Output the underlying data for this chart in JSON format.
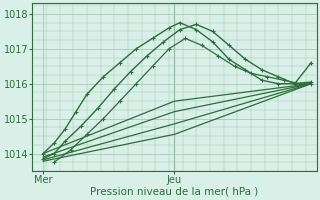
{
  "title": "",
  "xlabel": "Pression niveau de la mer( hPa )",
  "ylabel": "",
  "bg_color": "#d8f0e8",
  "grid_color": "#a8c8b8",
  "line_color": "#2d6e3a",
  "ylim": [
    1013.5,
    1018.3
  ],
  "xlim": [
    0,
    52
  ],
  "yticks": [
    1014,
    1015,
    1016,
    1017,
    1018
  ],
  "xtick_positions": [
    2,
    26
  ],
  "xtick_labels": [
    "Mer",
    "Jeu"
  ],
  "vline_x": 26,
  "series": [
    {
      "x": [
        2,
        4,
        6,
        8,
        10,
        13,
        16,
        19,
        22,
        25,
        27,
        30,
        33,
        36,
        39,
        42,
        45,
        48,
        51
      ],
      "y": [
        1014.0,
        1014.3,
        1014.7,
        1015.2,
        1015.7,
        1016.2,
        1016.6,
        1017.0,
        1017.3,
        1017.6,
        1017.75,
        1017.55,
        1017.2,
        1016.7,
        1016.4,
        1016.1,
        1016.0,
        1016.0,
        1016.05
      ],
      "marker": "+",
      "ms": 3.5,
      "lw": 1.0
    },
    {
      "x": [
        2,
        4,
        6,
        9,
        12,
        15,
        18,
        21,
        24,
        27,
        30,
        33,
        36,
        39,
        42,
        45,
        48,
        51
      ],
      "y": [
        1013.85,
        1014.0,
        1014.35,
        1014.8,
        1015.3,
        1015.85,
        1016.35,
        1016.8,
        1017.2,
        1017.55,
        1017.7,
        1017.5,
        1017.1,
        1016.7,
        1016.4,
        1016.2,
        1016.0,
        1016.6
      ],
      "marker": "+",
      "ms": 3.5,
      "lw": 1.0
    },
    {
      "x": [
        4,
        7,
        10,
        13,
        16,
        19,
        22,
        25,
        28,
        31,
        34,
        37,
        40,
        43,
        46,
        49,
        51
      ],
      "y": [
        1013.75,
        1014.1,
        1014.55,
        1015.0,
        1015.5,
        1016.0,
        1016.5,
        1017.0,
        1017.3,
        1017.1,
        1016.8,
        1016.5,
        1016.3,
        1016.2,
        1016.1,
        1016.0,
        1016.0
      ],
      "marker": "+",
      "ms": 3.0,
      "lw": 0.9
    },
    {
      "x": [
        2,
        26,
        51
      ],
      "y": [
        1014.0,
        1015.5,
        1016.0
      ],
      "marker": null,
      "ms": 0,
      "lw": 0.9
    },
    {
      "x": [
        2,
        26,
        51
      ],
      "y": [
        1013.9,
        1015.2,
        1016.0
      ],
      "marker": null,
      "ms": 0,
      "lw": 0.9
    },
    {
      "x": [
        2,
        26,
        51
      ],
      "y": [
        1013.82,
        1014.85,
        1016.0
      ],
      "marker": null,
      "ms": 0,
      "lw": 0.9
    },
    {
      "x": [
        2,
        26,
        51
      ],
      "y": [
        1013.78,
        1014.55,
        1016.0
      ],
      "marker": null,
      "ms": 0,
      "lw": 0.9
    }
  ]
}
